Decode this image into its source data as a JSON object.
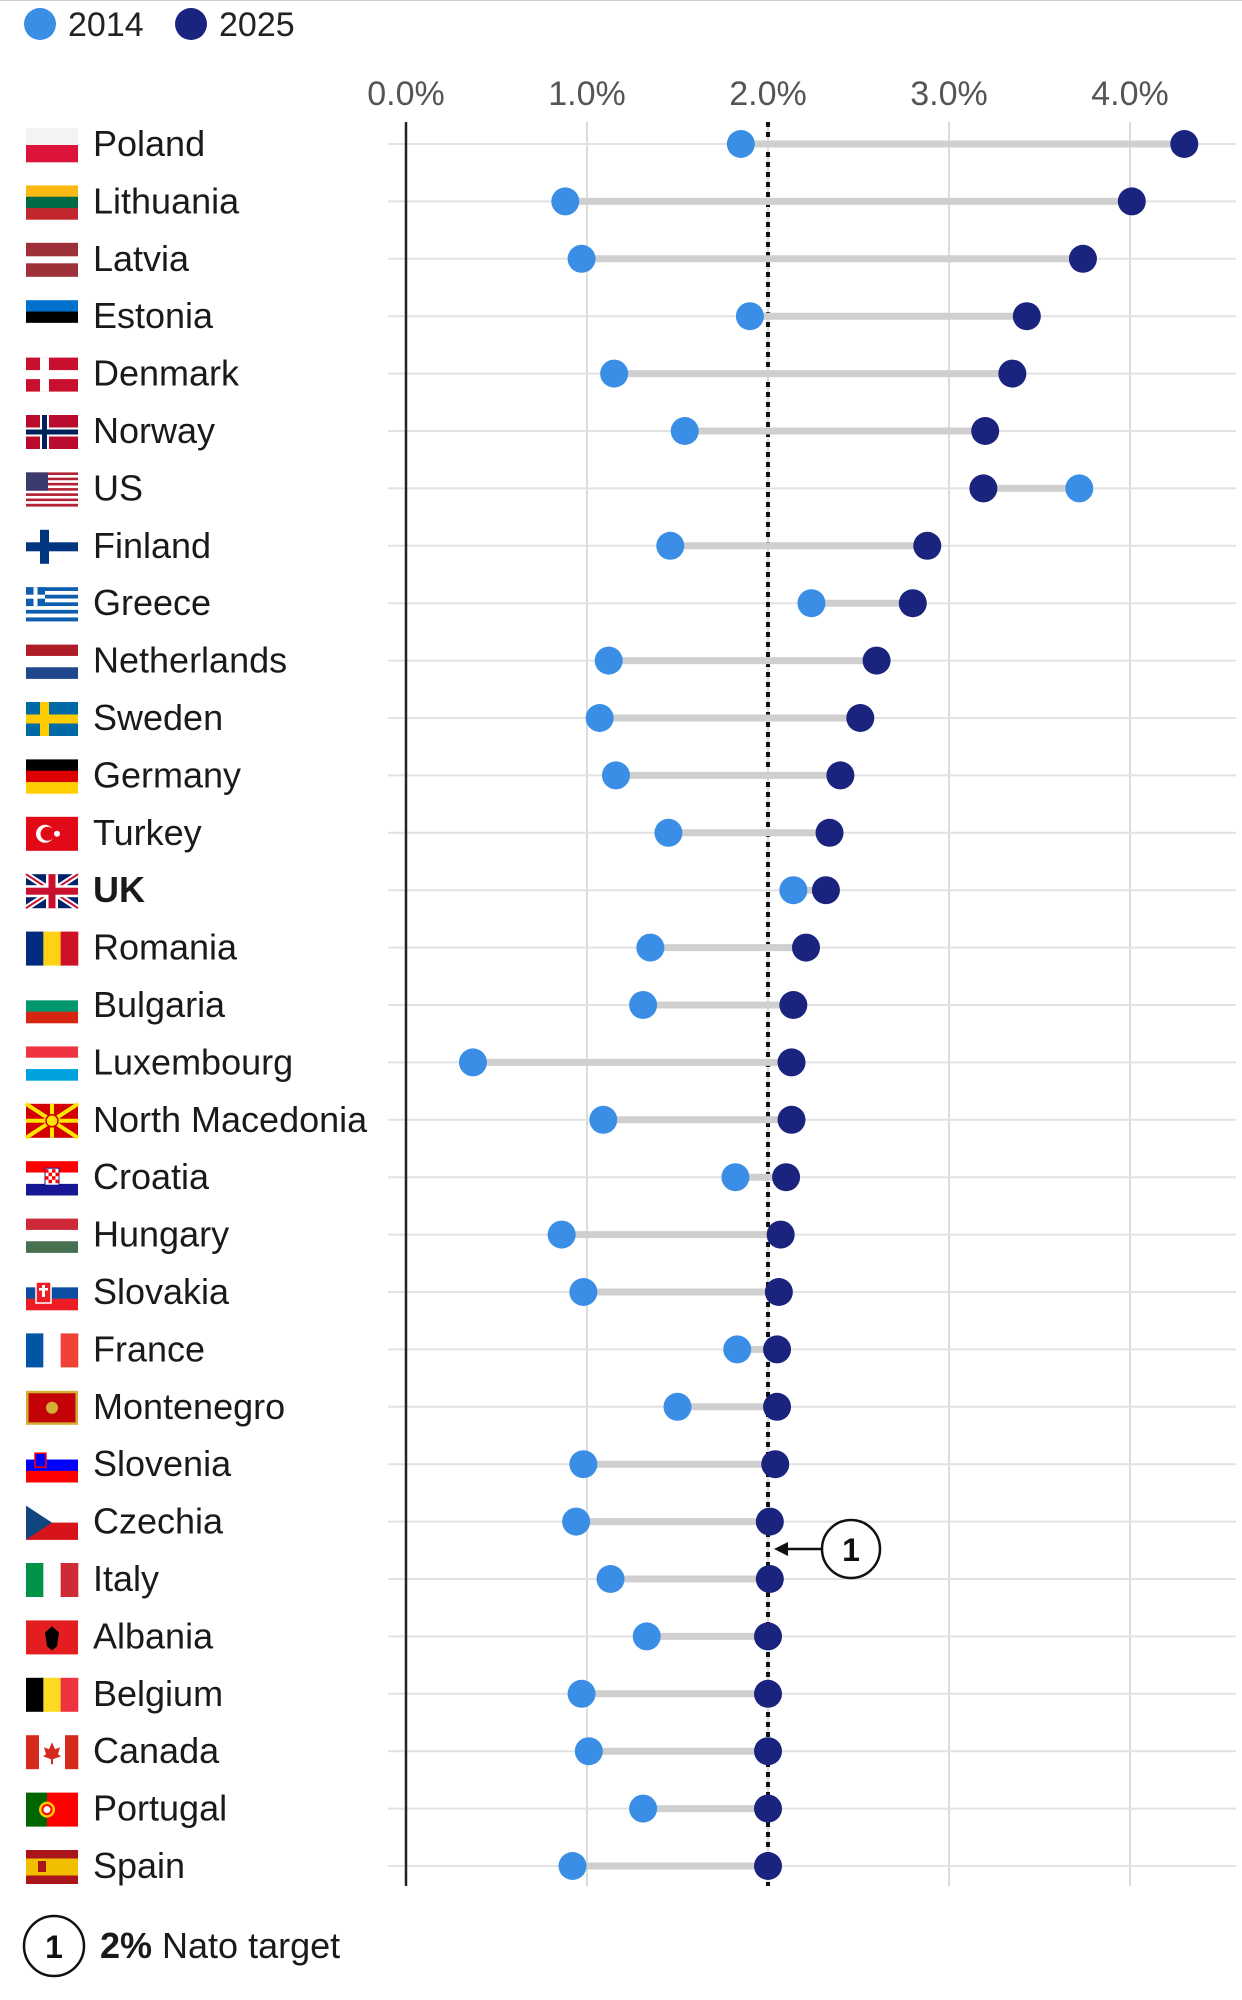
{
  "chart_data": {
    "type": "dumbbell",
    "title": "",
    "xlabel": "",
    "ylabel": "",
    "xlim": [
      0,
      4.5
    ],
    "x_ticks": [
      {
        "value": 0,
        "label": "0.0%"
      },
      {
        "value": 1,
        "label": "1.0%"
      },
      {
        "value": 2,
        "label": "2.0%"
      },
      {
        "value": 3,
        "label": "3.0%"
      },
      {
        "value": 4,
        "label": "4.0%"
      }
    ],
    "legend": {
      "placement": "top-left",
      "entries": [
        {
          "name": "2014",
          "color": "#3a8ee6"
        },
        {
          "name": "2025",
          "color": "#1a237e"
        }
      ]
    },
    "series_names": [
      "2014",
      "2025"
    ],
    "reference_line": {
      "value": 2.0,
      "marker": "1",
      "label_bold": "2%",
      "label_rest": " Nato target"
    },
    "rows": [
      {
        "country": "Poland",
        "flag": "poland",
        "v2014": 1.85,
        "v2025": 4.3,
        "bold": false
      },
      {
        "country": "Lithuania",
        "flag": "lithuania",
        "v2014": 0.88,
        "v2025": 4.01,
        "bold": false
      },
      {
        "country": "Latvia",
        "flag": "latvia",
        "v2014": 0.97,
        "v2025": 3.74,
        "bold": false
      },
      {
        "country": "Estonia",
        "flag": "estonia",
        "v2014": 1.9,
        "v2025": 3.43,
        "bold": false
      },
      {
        "country": "Denmark",
        "flag": "denmark",
        "v2014": 1.15,
        "v2025": 3.35,
        "bold": false
      },
      {
        "country": "Norway",
        "flag": "norway",
        "v2014": 1.54,
        "v2025": 3.2,
        "bold": false
      },
      {
        "country": "US",
        "flag": "us",
        "v2014": 3.72,
        "v2025": 3.19,
        "bold": false
      },
      {
        "country": "Finland",
        "flag": "finland",
        "v2014": 1.46,
        "v2025": 2.88,
        "bold": false
      },
      {
        "country": "Greece",
        "flag": "greece",
        "v2014": 2.24,
        "v2025": 2.8,
        "bold": false
      },
      {
        "country": "Netherlands",
        "flag": "netherlands",
        "v2014": 1.12,
        "v2025": 2.6,
        "bold": false
      },
      {
        "country": "Sweden",
        "flag": "sweden",
        "v2014": 1.07,
        "v2025": 2.51,
        "bold": false
      },
      {
        "country": "Germany",
        "flag": "germany",
        "v2014": 1.16,
        "v2025": 2.4,
        "bold": false
      },
      {
        "country": "Turkey",
        "flag": "turkey",
        "v2014": 1.45,
        "v2025": 2.34,
        "bold": false
      },
      {
        "country": "UK",
        "flag": "uk",
        "v2014": 2.14,
        "v2025": 2.32,
        "bold": true
      },
      {
        "country": "Romania",
        "flag": "romania",
        "v2014": 1.35,
        "v2025": 2.21,
        "bold": false
      },
      {
        "country": "Bulgaria",
        "flag": "bulgaria",
        "v2014": 1.31,
        "v2025": 2.14,
        "bold": false
      },
      {
        "country": "Luxembourg",
        "flag": "luxembourg",
        "v2014": 0.37,
        "v2025": 2.13,
        "bold": false
      },
      {
        "country": "North Macedonia",
        "flag": "north-macedonia",
        "v2014": 1.09,
        "v2025": 2.13,
        "bold": false
      },
      {
        "country": "Croatia",
        "flag": "croatia",
        "v2014": 1.82,
        "v2025": 2.1,
        "bold": false
      },
      {
        "country": "Hungary",
        "flag": "hungary",
        "v2014": 0.86,
        "v2025": 2.07,
        "bold": false
      },
      {
        "country": "Slovakia",
        "flag": "slovakia",
        "v2014": 0.98,
        "v2025": 2.06,
        "bold": false
      },
      {
        "country": "France",
        "flag": "france",
        "v2014": 1.83,
        "v2025": 2.05,
        "bold": false
      },
      {
        "country": "Montenegro",
        "flag": "montenegro",
        "v2014": 1.5,
        "v2025": 2.05,
        "bold": false
      },
      {
        "country": "Slovenia",
        "flag": "slovenia",
        "v2014": 0.98,
        "v2025": 2.04,
        "bold": false
      },
      {
        "country": "Czechia",
        "flag": "czechia",
        "v2014": 0.94,
        "v2025": 2.01,
        "bold": false
      },
      {
        "country": "Italy",
        "flag": "italy",
        "v2014": 1.13,
        "v2025": 2.01,
        "bold": false
      },
      {
        "country": "Albania",
        "flag": "albania",
        "v2014": 1.33,
        "v2025": 2.0,
        "bold": false
      },
      {
        "country": "Belgium",
        "flag": "belgium",
        "v2014": 0.97,
        "v2025": 2.0,
        "bold": false
      },
      {
        "country": "Canada",
        "flag": "canada",
        "v2014": 1.01,
        "v2025": 2.0,
        "bold": false
      },
      {
        "country": "Portugal",
        "flag": "portugal",
        "v2014": 1.31,
        "v2025": 2.0,
        "bold": false
      },
      {
        "country": "Spain",
        "flag": "spain",
        "v2014": 0.92,
        "v2025": 2.0,
        "bold": false
      }
    ]
  }
}
